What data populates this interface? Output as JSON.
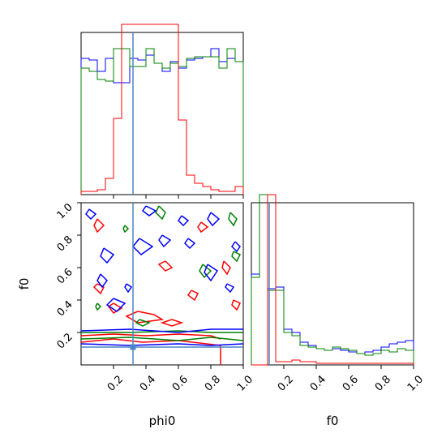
{
  "chart_data": [
    {
      "type": "histogram",
      "panel": "phi0 marginal",
      "xlim": [
        0,
        1
      ],
      "bins": [
        0.0,
        0.05,
        0.1,
        0.15,
        0.2,
        0.25,
        0.3,
        0.35,
        0.4,
        0.45,
        0.5,
        0.55,
        0.6,
        0.65,
        0.7,
        0.75,
        0.8,
        0.85,
        0.9,
        0.95,
        1.0
      ],
      "series": [
        {
          "color": "#0000ff",
          "values": [
            0.84,
            0.83,
            0.76,
            0.84,
            0.69,
            0.69,
            0.84,
            0.83,
            0.86,
            0.81,
            0.76,
            0.82,
            0.78,
            0.83,
            0.84,
            0.85,
            0.9,
            0.82,
            0.84,
            0.82
          ]
        },
        {
          "color": "#008000",
          "values": [
            0.78,
            0.76,
            0.71,
            0.7,
            0.9,
            0.9,
            0.79,
            0.79,
            0.9,
            0.81,
            0.78,
            0.81,
            0.79,
            0.84,
            0.85,
            0.85,
            0.85,
            0.78,
            0.9,
            0.82
          ]
        },
        {
          "color": "#ff0000",
          "values": [
            0.02,
            0.02,
            0.03,
            0.1,
            0.47,
            1.05,
            1.05,
            1.05,
            1.05,
            1.05,
            1.05,
            1.05,
            0.46,
            0.12,
            0.07,
            0.05,
            0.03,
            0.02,
            0.02,
            0.05
          ]
        }
      ],
      "truth_line": {
        "axis": "x",
        "value": 0.32,
        "color": "#4a86c8"
      }
    },
    {
      "type": "contour",
      "panel": "phi0 vs f0",
      "xlabel": "phi0",
      "ylabel": "f0",
      "xlim": [
        0,
        1
      ],
      "ylim": [
        0,
        1
      ],
      "x_ticks": [
        "0.2",
        "0.4",
        "0.6",
        "0.8",
        "1.0"
      ],
      "y_ticks": [
        "0.2",
        "0.4",
        "0.6",
        "0.8",
        "1.0"
      ],
      "truth_point": {
        "x": 0.32,
        "y": 0.11,
        "color": "#4a86c8"
      },
      "series": [
        {
          "color": "#ff0000",
          "contours": [
            [
              [
                0.0,
                0.18
              ],
              [
                0.2,
                0.19
              ],
              [
                0.4,
                0.18
              ],
              [
                0.6,
                0.19
              ],
              [
                0.8,
                0.18
              ],
              [
                0.86,
                0.16
              ]
            ],
            [
              [
                0.0,
                0.14
              ],
              [
                0.2,
                0.16
              ],
              [
                0.38,
                0.14
              ],
              [
                0.6,
                0.15
              ],
              [
                0.86,
                0.12
              ],
              [
                0.86,
                0.0
              ]
            ],
            [
              [
                0.35,
                0.33
              ],
              [
                0.45,
                0.31
              ],
              [
                0.5,
                0.28
              ],
              [
                0.35,
                0.26
              ],
              [
                0.28,
                0.3
              ],
              [
                0.35,
                0.33
              ]
            ],
            [
              [
                0.56,
                0.28
              ],
              [
                0.62,
                0.26
              ],
              [
                0.56,
                0.24
              ],
              [
                0.5,
                0.26
              ],
              [
                0.56,
                0.28
              ]
            ],
            [
              [
                0.1,
                0.9
              ],
              [
                0.14,
                0.86
              ],
              [
                0.1,
                0.82
              ],
              [
                0.08,
                0.86
              ],
              [
                0.1,
                0.9
              ]
            ],
            [
              [
                0.52,
                0.64
              ],
              [
                0.56,
                0.6
              ],
              [
                0.52,
                0.58
              ],
              [
                0.48,
                0.62
              ],
              [
                0.52,
                0.64
              ]
            ],
            [
              [
                0.1,
                0.5
              ],
              [
                0.14,
                0.48
              ],
              [
                0.12,
                0.44
              ],
              [
                0.08,
                0.48
              ],
              [
                0.1,
                0.5
              ]
            ],
            [
              [
                0.68,
                0.46
              ],
              [
                0.72,
                0.44
              ],
              [
                0.7,
                0.4
              ],
              [
                0.66,
                0.43
              ],
              [
                0.68,
                0.46
              ]
            ],
            [
              [
                0.88,
                0.64
              ],
              [
                0.92,
                0.6
              ],
              [
                0.9,
                0.56
              ],
              [
                0.87,
                0.6
              ],
              [
                0.88,
                0.64
              ]
            ],
            [
              [
                0.74,
                0.88
              ],
              [
                0.78,
                0.85
              ],
              [
                0.74,
                0.82
              ],
              [
                0.72,
                0.85
              ],
              [
                0.74,
                0.88
              ]
            ],
            [
              [
                0.2,
                0.38
              ],
              [
                0.25,
                0.35
              ],
              [
                0.2,
                0.32
              ],
              [
                0.17,
                0.36
              ],
              [
                0.2,
                0.38
              ]
            ],
            [
              [
                0.94,
                0.4
              ],
              [
                0.98,
                0.38
              ],
              [
                0.96,
                0.34
              ],
              [
                0.93,
                0.37
              ],
              [
                0.94,
                0.4
              ]
            ]
          ]
        },
        {
          "color": "#008000",
          "contours": [
            [
              [
                0.0,
                0.2
              ],
              [
                0.3,
                0.2
              ],
              [
                0.6,
                0.21
              ],
              [
                0.8,
                0.2
              ],
              [
                1.0,
                0.2
              ]
            ],
            [
              [
                0.0,
                0.16
              ],
              [
                0.3,
                0.17
              ],
              [
                0.6,
                0.15
              ],
              [
                0.8,
                0.17
              ],
              [
                1.0,
                0.15
              ]
            ],
            [
              [
                0.36,
                0.28
              ],
              [
                0.42,
                0.26
              ],
              [
                0.38,
                0.24
              ],
              [
                0.34,
                0.26
              ],
              [
                0.36,
                0.28
              ]
            ],
            [
              [
                0.92,
                0.94
              ],
              [
                0.96,
                0.9
              ],
              [
                0.94,
                0.86
              ],
              [
                0.91,
                0.9
              ],
              [
                0.92,
                0.94
              ]
            ],
            [
              [
                0.48,
                0.98
              ],
              [
                0.52,
                0.94
              ],
              [
                0.5,
                0.9
              ],
              [
                0.46,
                0.94
              ],
              [
                0.48,
                0.98
              ]
            ],
            [
              [
                0.75,
                0.62
              ],
              [
                0.8,
                0.58
              ],
              [
                0.76,
                0.54
              ],
              [
                0.73,
                0.58
              ],
              [
                0.75,
                0.62
              ]
            ],
            [
              [
                0.94,
                0.7
              ],
              [
                0.98,
                0.68
              ],
              [
                0.96,
                0.64
              ],
              [
                0.93,
                0.67
              ],
              [
                0.94,
                0.7
              ]
            ],
            [
              [
                0.27,
                0.86
              ],
              [
                0.29,
                0.84
              ],
              [
                0.27,
                0.82
              ],
              [
                0.26,
                0.84
              ],
              [
                0.27,
                0.86
              ]
            ],
            [
              [
                0.1,
                0.38
              ],
              [
                0.12,
                0.36
              ],
              [
                0.1,
                0.34
              ],
              [
                0.09,
                0.36
              ],
              [
                0.1,
                0.38
              ]
            ]
          ]
        },
        {
          "color": "#0000ff",
          "contours": [
            [
              [
                0.0,
                0.21
              ],
              [
                0.3,
                0.22
              ],
              [
                0.6,
                0.2
              ],
              [
                0.8,
                0.22
              ],
              [
                1.0,
                0.22
              ]
            ],
            [
              [
                0.0,
                0.13
              ],
              [
                0.3,
                0.12
              ],
              [
                0.6,
                0.13
              ],
              [
                0.8,
                0.12
              ],
              [
                1.0,
                0.13
              ]
            ],
            [
              [
                0.2,
                0.41
              ],
              [
                0.27,
                0.38
              ],
              [
                0.22,
                0.33
              ],
              [
                0.16,
                0.37
              ],
              [
                0.2,
                0.41
              ]
            ],
            [
              [
                0.36,
                0.78
              ],
              [
                0.44,
                0.73
              ],
              [
                0.37,
                0.68
              ],
              [
                0.32,
                0.73
              ],
              [
                0.36,
                0.78
              ]
            ],
            [
              [
                0.14,
                0.72
              ],
              [
                0.2,
                0.68
              ],
              [
                0.16,
                0.63
              ],
              [
                0.12,
                0.67
              ],
              [
                0.14,
                0.72
              ]
            ],
            [
              [
                0.4,
                0.98
              ],
              [
                0.46,
                0.95
              ],
              [
                0.42,
                0.92
              ],
              [
                0.38,
                0.95
              ],
              [
                0.4,
                0.98
              ]
            ],
            [
              [
                0.8,
                0.94
              ],
              [
                0.85,
                0.9
              ],
              [
                0.81,
                0.86
              ],
              [
                0.78,
                0.9
              ],
              [
                0.8,
                0.94
              ]
            ],
            [
              [
                0.62,
                0.92
              ],
              [
                0.66,
                0.89
              ],
              [
                0.63,
                0.86
              ],
              [
                0.6,
                0.89
              ],
              [
                0.62,
                0.92
              ]
            ],
            [
              [
                0.12,
                0.56
              ],
              [
                0.16,
                0.52
              ],
              [
                0.13,
                0.48
              ],
              [
                0.1,
                0.52
              ],
              [
                0.12,
                0.56
              ]
            ],
            [
              [
                0.78,
                0.62
              ],
              [
                0.84,
                0.58
              ],
              [
                0.8,
                0.52
              ],
              [
                0.76,
                0.57
              ],
              [
                0.78,
                0.62
              ]
            ],
            [
              [
                0.5,
                0.8
              ],
              [
                0.55,
                0.77
              ],
              [
                0.51,
                0.73
              ],
              [
                0.48,
                0.77
              ],
              [
                0.5,
                0.8
              ]
            ],
            [
              [
                0.28,
                0.5
              ],
              [
                0.31,
                0.48
              ],
              [
                0.29,
                0.45
              ],
              [
                0.27,
                0.48
              ],
              [
                0.28,
                0.5
              ]
            ],
            [
              [
                0.66,
                0.78
              ],
              [
                0.7,
                0.75
              ],
              [
                0.67,
                0.72
              ],
              [
                0.64,
                0.75
              ],
              [
                0.66,
                0.78
              ]
            ],
            [
              [
                0.95,
                0.76
              ],
              [
                0.98,
                0.73
              ],
              [
                0.96,
                0.7
              ],
              [
                0.93,
                0.73
              ],
              [
                0.95,
                0.76
              ]
            ],
            [
              [
                0.9,
                0.5
              ],
              [
                0.94,
                0.48
              ],
              [
                0.92,
                0.45
              ],
              [
                0.89,
                0.48
              ],
              [
                0.9,
                0.5
              ]
            ],
            [
              [
                0.05,
                0.96
              ],
              [
                0.09,
                0.93
              ],
              [
                0.06,
                0.9
              ],
              [
                0.03,
                0.93
              ],
              [
                0.05,
                0.96
              ]
            ]
          ]
        }
      ]
    },
    {
      "type": "histogram",
      "panel": "f0 marginal",
      "xlabel": "f0",
      "xlim": [
        0,
        1
      ],
      "x_ticks": [
        "0.2",
        "0.4",
        "0.6",
        "0.8",
        "1.0"
      ],
      "bins": [
        0.0,
        0.05,
        0.1,
        0.15,
        0.2,
        0.25,
        0.3,
        0.35,
        0.4,
        0.45,
        0.5,
        0.55,
        0.6,
        0.65,
        0.7,
        0.75,
        0.8,
        0.85,
        0.9,
        0.95,
        1.0
      ],
      "series": [
        {
          "color": "#0000ff",
          "values": [
            0.56,
            1.05,
            0.47,
            0.48,
            0.22,
            0.2,
            0.14,
            0.12,
            0.1,
            0.09,
            0.1,
            0.09,
            0.08,
            0.07,
            0.08,
            0.09,
            0.11,
            0.13,
            0.14,
            0.15
          ]
        },
        {
          "color": "#008000",
          "values": [
            0.54,
            1.05,
            0.46,
            0.46,
            0.2,
            0.18,
            0.12,
            0.11,
            0.1,
            0.09,
            0.11,
            0.1,
            0.09,
            0.07,
            0.06,
            0.07,
            0.09,
            0.08,
            0.1,
            0.09
          ]
        },
        {
          "color": "#ff0000",
          "values": [
            0.0,
            0.0,
            1.05,
            0.02,
            0.02,
            0.03,
            0.02,
            0.02,
            0.01,
            0.01,
            0.01,
            0.01,
            0.01,
            0.01,
            0.01,
            0.01,
            0.01,
            0.01,
            0.01,
            0.01
          ]
        }
      ],
      "truth_line": {
        "axis": "x",
        "value": 0.11,
        "color": "#4a86c8"
      }
    }
  ]
}
